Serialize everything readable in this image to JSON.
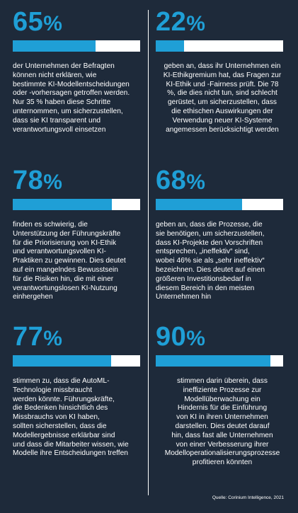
{
  "colors": {
    "background": "#1e2a3a",
    "accent": "#1f9fd6",
    "bar_track": "#ffffff"
  },
  "stats": [
    {
      "pct": "65",
      "unit": "%",
      "fraction": 0.65,
      "text": "der Unternehmen der Befragten\nkönnen nicht erklären, wie\nbestimmte KI-Modellentscheidungen\noder -vorhersagen getroffen werden.\nNur 35 % haben diese Schritte\nunternommen, um sicherzustellen,\ndass sie KI transparent und\nverantwortungsvoll einsetzen"
    },
    {
      "pct": "22",
      "unit": "%",
      "fraction": 0.22,
      "text": "geben an, dass ihr Unternehmen ein\nKI-Ethikgremium hat, das Fragen zur\nKI-Ethik und -Fairness prüft. Die 78\n%, die dies nicht tun, sind schlecht\ngerüstet, um sicherzustellen, dass\ndie ethischen Auswirkungen der\nVerwendung neuer KI-Systeme\nangemessen berücksichtigt werden"
    },
    {
      "pct": "78",
      "unit": "%",
      "fraction": 0.78,
      "text": "finden es schwierig, die\nUnterstützung der Führungskräfte\nfür die Priorisierung von KI-Ethik\nund verantwortungsvollen KI-\nPraktiken zu gewinnen. Dies deutet\nauf ein mangelndes Bewusstsein\nfür die Risiken hin, die mit einer\nverantwortungslosen KI-Nutzung\neinhergehen"
    },
    {
      "pct": "68",
      "unit": "%",
      "fraction": 0.68,
      "text": "geben an, dass die Prozesse, die\nsie benötigen, um sicherzustellen,\ndass KI-Projekte den Vorschriften\nentsprechen, „ineffektiv“ sind,\nwobei 46% sie als „sehr ineffektiv“\nbezeichnen. Dies deutet auf einen\ngrößeren Investitionsbedarf in\ndiesem Bereich in den meisten\nUnternehmen hin"
    },
    {
      "pct": "77",
      "unit": "%",
      "fraction": 0.77,
      "text": "stimmen zu, dass die AutoML-\nTechnologie missbraucht\nwerden könnte. Führungskräfte,\ndie Bedenken hinsichtlich des\nMissbrauchs von KI haben,\nsollten sicherstellen, dass die\nModellergebnisse erklärbar sind\nund dass die Mitarbeiter wissen, wie\nModelle ihre Entscheidungen treffen"
    },
    {
      "pct": "90",
      "unit": "%",
      "fraction": 0.9,
      "text": "stimmen darin überein, dass\nineffiziente Prozesse zur\nModellüberwachung ein\nHindernis für die Einführung\nvon KI in ihren Unternehmen\ndarstellen. Dies deutet darauf\nhin, dass fast alle Unternehmen\nvon einer Verbesserung ihrer\nModelloperationalisierungsprozesse\nprofitieren könnten"
    }
  ],
  "source": "Quelle: Corinium Intelligence, 2021"
}
